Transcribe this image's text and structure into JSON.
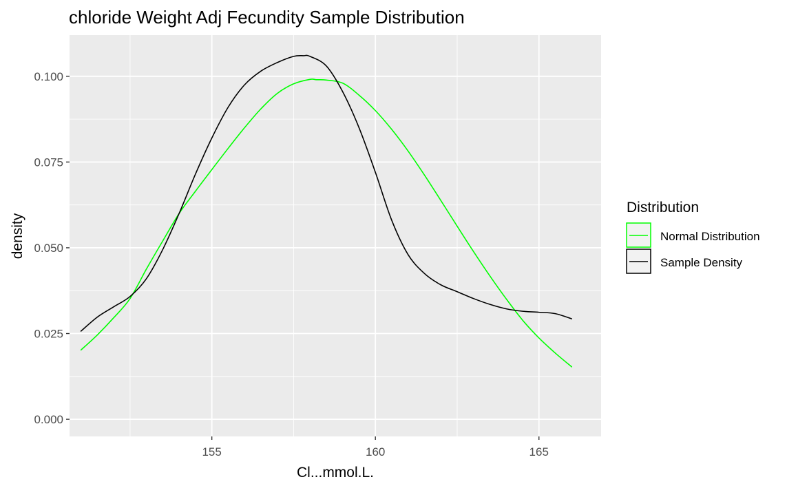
{
  "chart_data": {
    "type": "line",
    "title": "chloride Weight Adj Fecundity Sample Distribution",
    "xlabel": "Cl...mmol.L.",
    "ylabel": "density",
    "xlim": [
      150.65,
      166.9
    ],
    "ylim": [
      -0.005,
      0.112
    ],
    "x_ticks": [
      155,
      160,
      165
    ],
    "x_tick_labels": [
      "155",
      "160",
      "165"
    ],
    "x_minor_ticks": [
      152.5,
      157.5,
      162.5
    ],
    "y_ticks": [
      0.0,
      0.025,
      0.05,
      0.075,
      0.1
    ],
    "y_tick_labels": [
      "0.000",
      "0.025",
      "0.050",
      "0.075",
      "0.100"
    ],
    "grid": true,
    "legend": {
      "title": "Distribution",
      "position": "right",
      "entries": [
        "Normal Distribution",
        "Sample Density"
      ]
    },
    "series": [
      {
        "name": "Normal Distribution",
        "color": "#00ff00",
        "x": [
          151.0,
          151.5,
          152.0,
          152.5,
          153.0,
          153.5,
          154.0,
          154.5,
          155.0,
          155.5,
          156.0,
          156.5,
          157.0,
          157.5,
          158.0,
          158.2,
          158.5,
          159.0,
          159.5,
          160.0,
          160.5,
          161.0,
          161.5,
          162.0,
          162.5,
          163.0,
          163.5,
          164.0,
          164.5,
          165.0,
          165.5,
          166.0
        ],
        "values": [
          0.0202,
          0.0246,
          0.0296,
          0.0352,
          0.0438,
          0.052,
          0.06,
          0.0665,
          0.0728,
          0.079,
          0.085,
          0.0905,
          0.095,
          0.0978,
          0.0991,
          0.099,
          0.0989,
          0.098,
          0.0945,
          0.09,
          0.0845,
          0.0782,
          0.0712,
          0.0638,
          0.0563,
          0.0489,
          0.0418,
          0.0351,
          0.0289,
          0.0237,
          0.0193,
          0.0153
        ]
      },
      {
        "name": "Sample Density",
        "color": "#000000",
        "x": [
          151.0,
          151.5,
          152.0,
          152.5,
          153.0,
          153.5,
          154.0,
          154.5,
          155.0,
          155.5,
          156.0,
          156.5,
          157.0,
          157.5,
          157.8,
          158.0,
          158.5,
          159.0,
          159.5,
          160.0,
          160.5,
          161.0,
          161.5,
          162.0,
          162.5,
          163.0,
          163.5,
          164.0,
          164.5,
          165.0,
          165.5,
          166.0
        ],
        "values": [
          0.0257,
          0.0298,
          0.0328,
          0.0358,
          0.041,
          0.0495,
          0.06,
          0.0715,
          0.082,
          0.091,
          0.0975,
          0.1015,
          0.104,
          0.1058,
          0.106,
          0.1058,
          0.103,
          0.0955,
          0.085,
          0.072,
          0.058,
          0.048,
          0.0425,
          0.0392,
          0.0372,
          0.0352,
          0.0335,
          0.0322,
          0.0315,
          0.0312,
          0.0308,
          0.0293
        ]
      }
    ]
  }
}
